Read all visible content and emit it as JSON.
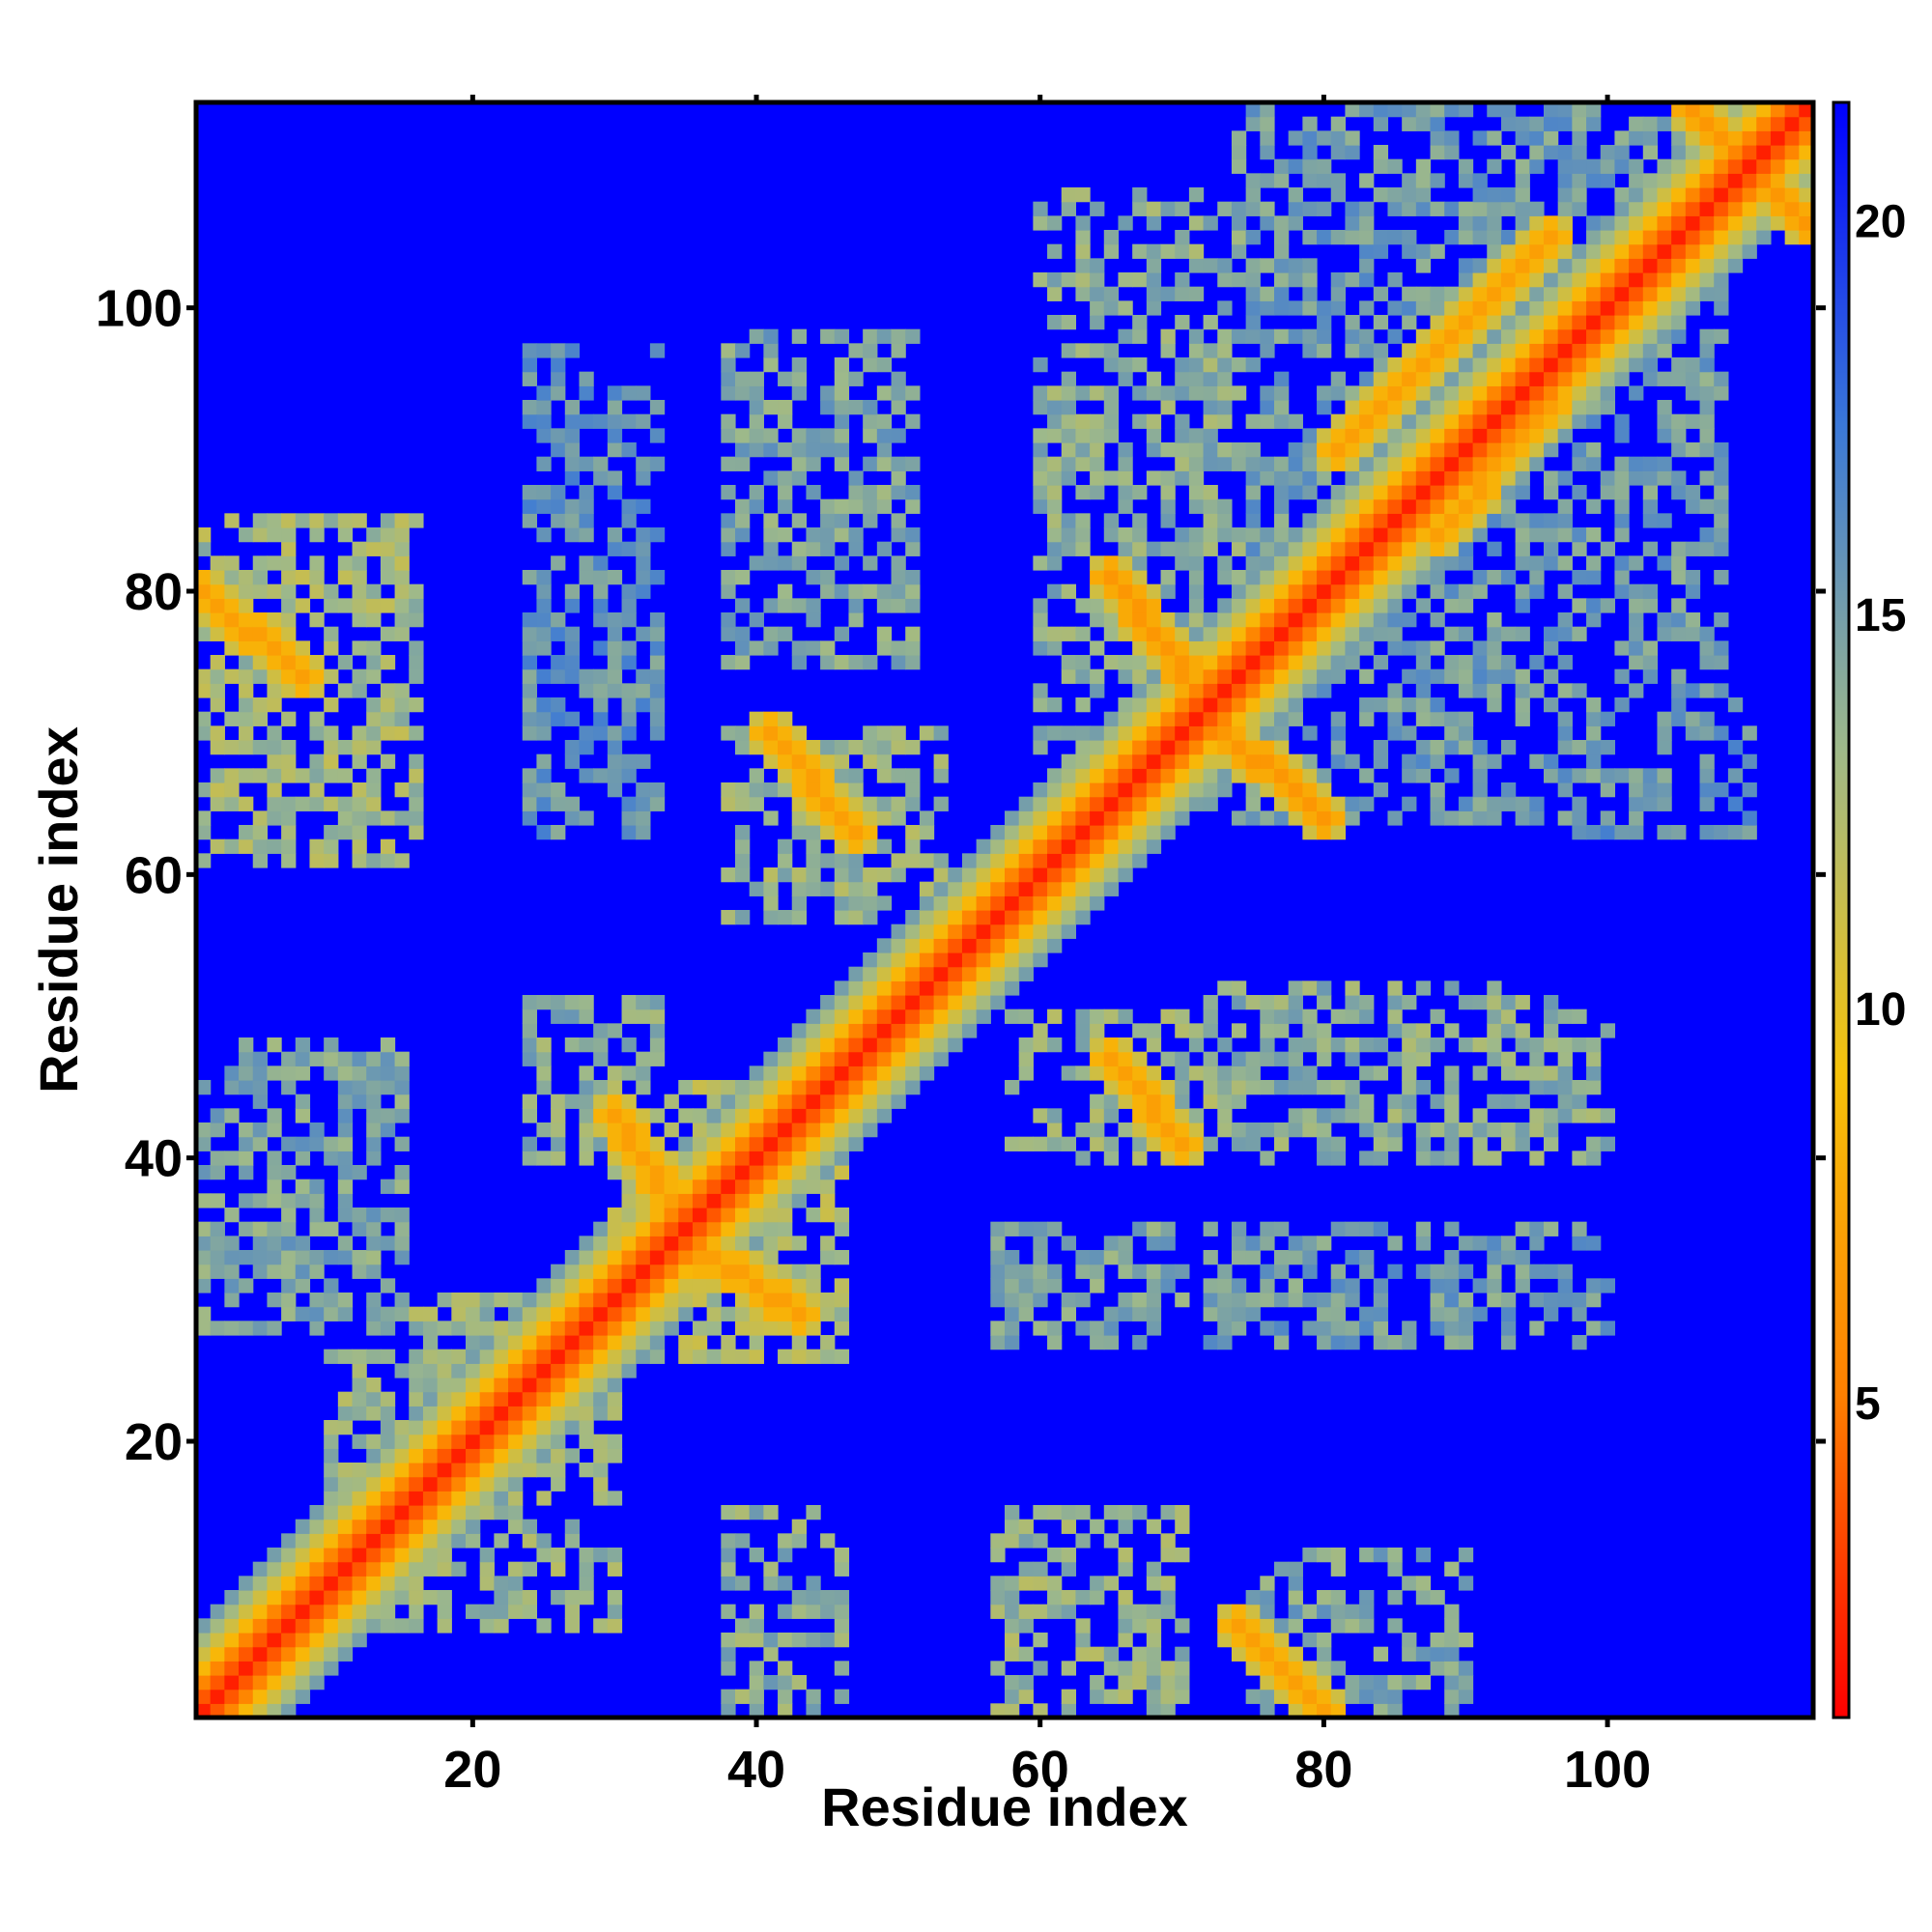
{
  "chart_data": {
    "type": "heatmap",
    "title": "",
    "xlabel": "Residue index",
    "ylabel": "Residue index",
    "xlim": [
      1,
      114
    ],
    "ylim": [
      1,
      114
    ],
    "x_ticks": [
      20,
      40,
      60,
      80,
      100
    ],
    "y_ticks": [
      20,
      40,
      60,
      80,
      100
    ],
    "x_tick_labels": [
      "20",
      "40",
      "60",
      "80",
      "100"
    ],
    "y_tick_labels": [
      "20",
      "40",
      "60",
      "80",
      "100"
    ],
    "colorbar": {
      "range": [
        1,
        21.5
      ],
      "ticks": [
        5,
        10,
        15,
        20
      ],
      "tick_labels": [
        "5",
        "10",
        "15",
        "20"
      ],
      "colors": [
        "#ff0000",
        "#ff8000",
        "#f6c20a",
        "#9eb98a",
        "#3a78d8",
        "#0000ff"
      ]
    },
    "background_color": "#0000ff",
    "diagonal_color": "#ff0000",
    "diagonal_band": [
      {
        "offset": 0,
        "value": 2.0
      },
      {
        "offset": 1,
        "value": 3.8
      },
      {
        "offset": 2,
        "value": 5.5
      },
      {
        "offset": 3,
        "value": 8.5
      },
      {
        "offset": 4,
        "value": 11.0
      },
      {
        "offset": 5,
        "value": 13.0
      },
      {
        "offset": 6,
        "value": 15.0
      }
    ],
    "contact_features": [
      {
        "x1": 1,
        "y1": 80,
        "x2": 8,
        "y2": 74,
        "value": 7.0
      },
      {
        "x1": 30,
        "y1": 43,
        "x2": 35,
        "y2": 35,
        "value": 7.0
      },
      {
        "x1": 35,
        "y1": 34,
        "x2": 43,
        "y2": 29,
        "value": 7.0
      },
      {
        "x1": 41,
        "y1": 70,
        "x2": 47,
        "y2": 63,
        "value": 7.0
      },
      {
        "x1": 65,
        "y1": 81,
        "x2": 71,
        "y2": 73,
        "value": 6.5
      },
      {
        "x1": 72,
        "y1": 71,
        "x2": 80,
        "y2": 64,
        "value": 6.5
      },
      {
        "x1": 65,
        "y1": 47,
        "x2": 70,
        "y2": 41,
        "value": 7.0
      },
      {
        "x1": 74,
        "y1": 7,
        "x2": 80,
        "y2": 1,
        "value": 7.0
      },
      {
        "x1": 81,
        "y1": 90,
        "x2": 96,
        "y2": 105,
        "value": 7.0
      },
      {
        "x1": 88,
        "y1": 84,
        "x2": 98,
        "y2": 96,
        "value": 7.0
      },
      {
        "x1": 106,
        "y1": 114,
        "x2": 114,
        "y2": 106,
        "value": 6.5
      }
    ],
    "contact_regions": [
      {
        "x": [
          1,
          16
        ],
        "y": [
          61,
          85
        ],
        "value": 13.0
      },
      {
        "x": [
          1,
          15
        ],
        "y": [
          28,
          48
        ],
        "value": 14.5
      },
      {
        "x": [
          24,
          33
        ],
        "y": [
          63,
          97
        ],
        "value": 15.5
      },
      {
        "x": [
          24,
          33
        ],
        "y": [
          40,
          51
        ],
        "value": 14.0
      },
      {
        "x": [
          38,
          51
        ],
        "y": [
          75,
          98
        ],
        "value": 14.5
      },
      {
        "x": [
          38,
          53
        ],
        "y": [
          57,
          70
        ],
        "value": 13.5
      },
      {
        "x": [
          38,
          46
        ],
        "y": [
          1,
          15
        ],
        "value": 14.0
      },
      {
        "x": [
          57,
          70
        ],
        "y": [
          1,
          15
        ],
        "value": 13.5
      },
      {
        "x": [
          57,
          70
        ],
        "y": [
          27,
          35
        ],
        "value": 14.5
      },
      {
        "x": [
          58,
          72
        ],
        "y": [
          40,
          50
        ],
        "value": 13.5
      },
      {
        "x": [
          60,
          74
        ],
        "y": [
          65,
          108
        ],
        "value": 14.0
      },
      {
        "x": [
          74,
          108
        ],
        "y": [
          64,
          114
        ],
        "value": 15.0
      },
      {
        "x": [
          72,
          100
        ],
        "y": [
          40,
          52
        ],
        "value": 14.0
      },
      {
        "x": [
          72,
          100
        ],
        "y": [
          27,
          35
        ],
        "value": 15.0
      },
      {
        "x": [
          75,
          90
        ],
        "y": [
          1,
          12
        ],
        "value": 14.5
      },
      {
        "x": [
          10,
          30
        ],
        "y": [
          7,
          30
        ],
        "value": 13.5
      },
      {
        "x": [
          30,
          46
        ],
        "y": [
          26,
          45
        ],
        "value": 12.5
      },
      {
        "x": [
          98,
          110
        ],
        "y": [
          63,
          72
        ],
        "value": 15.5
      }
    ]
  }
}
